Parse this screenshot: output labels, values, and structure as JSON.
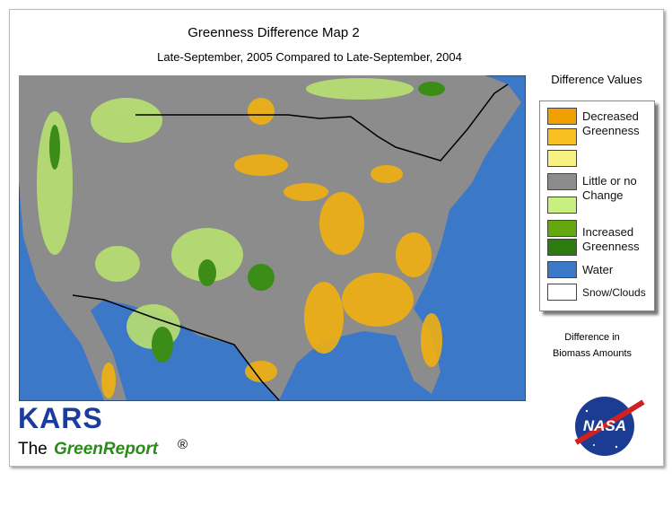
{
  "header": {
    "title": "Greenness Difference Map 2",
    "subtitle": "Late-September, 2005 Compared to Late-September, 2004"
  },
  "legend": {
    "title": "Difference Values",
    "swatches": [
      "#f0a000",
      "#f8c020",
      "#f8f080",
      "#8c8c8c",
      "#c8f080",
      "#64a810",
      "#2c7c10",
      "#3c78c8",
      "#ffffff"
    ],
    "labels": [
      "Decreased Greenness",
      "Little or no Change",
      "Increased Greenness",
      "Water",
      "Snow/Clouds"
    ]
  },
  "note": "Difference in Biomass Amounts",
  "branding": {
    "kars": "KARS",
    "the": "The",
    "greenreport": "GreenReport",
    "registered": "®",
    "nasa": "NASA"
  }
}
